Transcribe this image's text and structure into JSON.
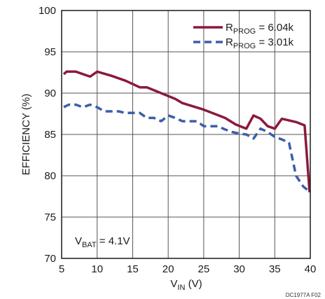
{
  "chart_data": {
    "type": "line",
    "xlabel": {
      "main": "V",
      "sub": "IN",
      "unit": " (V)"
    },
    "ylabel": "EFFICIENCY (%)",
    "xlim": [
      5,
      40
    ],
    "ylim": [
      70,
      100
    ],
    "x_ticks": [
      5,
      10,
      15,
      20,
      25,
      30,
      35,
      40
    ],
    "y_ticks": [
      70,
      75,
      80,
      85,
      90,
      95,
      100
    ],
    "x_tick_labels": [
      "5",
      "10",
      "15",
      "20",
      "25",
      "30",
      "35",
      "40"
    ],
    "y_tick_labels": [
      "70",
      "75",
      "80",
      "85",
      "90",
      "95",
      "100"
    ],
    "grid": true,
    "legend_position": "top-right",
    "annotation": {
      "main": "V",
      "sub": "BAT",
      "rest": " = 4.1V"
    },
    "figure_id": "DC1977A F02",
    "series": [
      {
        "name": "R_PROG = 6.04k",
        "label_main": "R",
        "label_sub": "PROG",
        "label_value": " = 6.04k",
        "color": "#8b1a3a",
        "style": "solid",
        "points": [
          [
            5.3,
            92.3
          ],
          [
            5.7,
            92.6
          ],
          [
            7,
            92.6
          ],
          [
            9,
            92.0
          ],
          [
            10,
            92.6
          ],
          [
            12,
            92.1
          ],
          [
            14,
            91.5
          ],
          [
            16,
            90.7
          ],
          [
            17,
            90.7
          ],
          [
            19,
            90.0
          ],
          [
            21,
            89.3
          ],
          [
            22,
            88.8
          ],
          [
            25,
            88.0
          ],
          [
            28,
            87.0
          ],
          [
            29.5,
            86.2
          ],
          [
            31,
            85.7
          ],
          [
            32,
            87.3
          ],
          [
            33,
            86.9
          ],
          [
            34,
            86.0
          ],
          [
            35,
            85.7
          ],
          [
            36,
            86.9
          ],
          [
            38,
            86.5
          ],
          [
            39.2,
            86.1
          ],
          [
            39.9,
            78.0
          ]
        ]
      },
      {
        "name": "R_PROG = 3.01k",
        "label_main": "R",
        "label_sub": "PROG",
        "label_value": " = 3.01k",
        "color": "#3c5ea8",
        "style": "dashed",
        "points": [
          [
            5.3,
            88.3
          ],
          [
            6,
            88.6
          ],
          [
            7,
            88.6
          ],
          [
            8,
            88.3
          ],
          [
            9,
            88.6
          ],
          [
            10,
            88.3
          ],
          [
            11,
            87.8
          ],
          [
            13,
            87.8
          ],
          [
            14,
            87.6
          ],
          [
            16,
            87.6
          ],
          [
            17,
            87.0
          ],
          [
            18,
            87.0
          ],
          [
            19,
            86.6
          ],
          [
            20,
            87.3
          ],
          [
            21,
            87.0
          ],
          [
            22,
            86.6
          ],
          [
            24,
            86.6
          ],
          [
            25,
            86.0
          ],
          [
            27,
            86.0
          ],
          [
            28,
            85.6
          ],
          [
            29,
            85.3
          ],
          [
            30,
            85.1
          ],
          [
            31,
            85.0
          ],
          [
            32,
            84.5
          ],
          [
            33,
            85.7
          ],
          [
            34,
            85.3
          ],
          [
            35,
            84.7
          ],
          [
            36,
            84.4
          ],
          [
            37,
            84.0
          ],
          [
            38,
            80.0
          ],
          [
            39,
            78.7
          ],
          [
            40,
            78.0
          ]
        ]
      }
    ]
  }
}
